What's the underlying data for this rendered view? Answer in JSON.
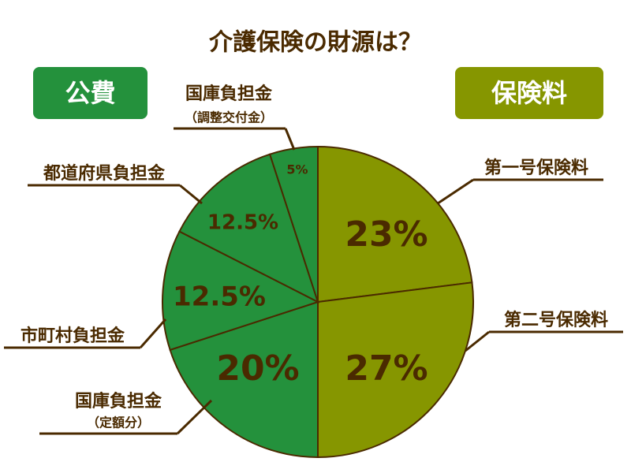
{
  "chart_data": {
    "type": "pie",
    "title": "介護保険の財源は？",
    "categories": [
      "第一号保険料",
      "第二号保険料",
      [
        "国庫負担金",
        "（定額分）"
      ],
      "市町村負担金",
      "都道府県負担金",
      [
        "国庫負担金",
        "（調整交付金）"
      ]
    ],
    "values": [
      23,
      27,
      20,
      12.5,
      12.5,
      5
    ],
    "value_labels": [
      "23%",
      "27%",
      "20%",
      "12.5%",
      "12.5%",
      "5%"
    ],
    "colors": [
      "#869600",
      "#869600",
      "#24913c",
      "#24913c",
      "#24913c",
      "#24913c"
    ],
    "groups": [
      {
        "name": "公費",
        "color": "#24913c"
      },
      {
        "name": "保険料",
        "color": "#869600"
      }
    ]
  }
}
